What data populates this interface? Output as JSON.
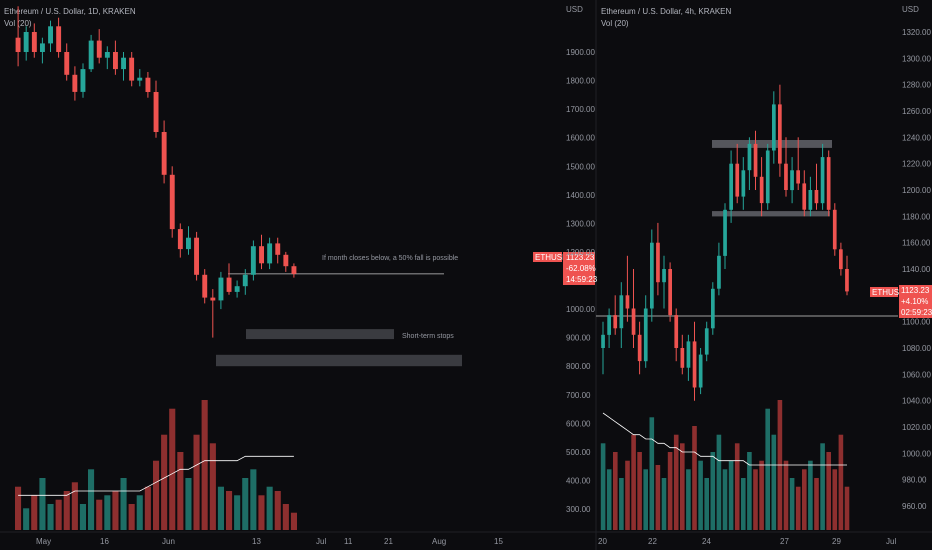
{
  "colors": {
    "up": "#26a69a",
    "down": "#ef5350",
    "up_vol": "#1e6e66",
    "down_vol": "#8e2f2f",
    "ma": "#ffffff",
    "zone": "#3a3b40",
    "tag_bg": "#ef5350"
  },
  "left": {
    "title": "Ethereum / U.S. Dollar, 1D, KRAKEN",
    "vol_label": "Vol (20)",
    "axis_unit": "USD",
    "price_ticks": [
      "1900.00",
      "1800.00",
      "1700.00",
      "1600.00",
      "1500.00",
      "1400.00",
      "1300.00",
      "1200.00",
      "1000.00",
      "900.00",
      "800.00",
      "700.00",
      "600.00",
      "500.00",
      "400.00",
      "300.00"
    ],
    "time_ticks": [
      "May",
      "16",
      "Jun",
      "13",
      "Jul",
      "11",
      "21",
      "Aug",
      "15"
    ],
    "price_tag": {
      "symbol": "ETHUSD",
      "price": "1123.23",
      "change": "-62.08%",
      "countdown": "14:59:23"
    },
    "annotations": {
      "month_close": "If month closes below, a 50% fall is possible",
      "stops": "Short-term stops"
    }
  },
  "right": {
    "title": "Ethereum / U.S. Dollar, 4h, KRAKEN",
    "vol_label": "Vol (20)",
    "axis_unit": "USD",
    "price_ticks": [
      "1320.00",
      "1300.00",
      "1280.00",
      "1260.00",
      "1240.00",
      "1220.00",
      "1200.00",
      "1180.00",
      "1160.00",
      "1140.00",
      "1100.00",
      "1080.00",
      "1060.00",
      "1040.00",
      "1020.00",
      "1000.00",
      "980.00",
      "960.00"
    ],
    "time_ticks": [
      "20",
      "22",
      "24",
      "27",
      "29",
      "Jul"
    ],
    "price_tag": {
      "symbol": "ETHUSD",
      "price": "1123.23",
      "change": "+4.10%",
      "countdown": "02:59:23"
    }
  },
  "chart_data": [
    {
      "type": "candlestick",
      "title": "Ethereum / U.S. Dollar, 1D, KRAKEN",
      "ylim": [
        300,
        2000
      ],
      "candles": [
        [
          1950,
          2060,
          1850,
          1900
        ],
        [
          1900,
          1990,
          1870,
          1970
        ],
        [
          1970,
          2000,
          1880,
          1900
        ],
        [
          1900,
          1950,
          1860,
          1930
        ],
        [
          1930,
          2010,
          1900,
          1990
        ],
        [
          1990,
          2020,
          1880,
          1900
        ],
        [
          1900,
          1930,
          1800,
          1820
        ],
        [
          1820,
          1850,
          1730,
          1760
        ],
        [
          1760,
          1860,
          1740,
          1840
        ],
        [
          1840,
          1960,
          1830,
          1940
        ],
        [
          1940,
          1980,
          1860,
          1880
        ],
        [
          1880,
          1920,
          1840,
          1900
        ],
        [
          1900,
          1940,
          1820,
          1840
        ],
        [
          1840,
          1900,
          1800,
          1880
        ],
        [
          1880,
          1900,
          1780,
          1800
        ],
        [
          1800,
          1840,
          1780,
          1810
        ],
        [
          1810,
          1830,
          1740,
          1760
        ],
        [
          1760,
          1800,
          1600,
          1620
        ],
        [
          1620,
          1660,
          1440,
          1470
        ],
        [
          1470,
          1500,
          1250,
          1280
        ],
        [
          1280,
          1300,
          1180,
          1210
        ],
        [
          1210,
          1290,
          1190,
          1250
        ],
        [
          1250,
          1270,
          1100,
          1120
        ],
        [
          1120,
          1140,
          1020,
          1040
        ],
        [
          1040,
          1070,
          900,
          1030
        ],
        [
          1030,
          1130,
          1000,
          1110
        ],
        [
          1110,
          1160,
          1050,
          1060
        ],
        [
          1060,
          1100,
          1040,
          1080
        ],
        [
          1080,
          1140,
          1050,
          1120
        ],
        [
          1120,
          1240,
          1100,
          1220
        ],
        [
          1220,
          1260,
          1140,
          1160
        ],
        [
          1160,
          1250,
          1140,
          1230
        ],
        [
          1230,
          1250,
          1160,
          1190
        ],
        [
          1190,
          1200,
          1130,
          1150
        ],
        [
          1150,
          1160,
          1110,
          1123
        ]
      ],
      "volumes": [
        10,
        5,
        8,
        12,
        6,
        7,
        9,
        11,
        6,
        14,
        7,
        8,
        9,
        12,
        6,
        8,
        10,
        16,
        22,
        28,
        18,
        12,
        22,
        30,
        20,
        10,
        9,
        8,
        12,
        14,
        8,
        10,
        9,
        6,
        4
      ],
      "volume_ma": [
        8,
        8,
        8,
        8,
        8,
        8,
        8,
        9,
        9,
        9,
        9,
        9,
        9,
        9,
        9,
        9,
        10,
        11,
        12,
        13,
        14,
        14,
        15,
        16,
        16,
        16,
        16,
        16,
        17,
        17,
        17,
        17,
        17,
        17,
        17
      ],
      "levels": {
        "month_close_line": 1123,
        "short_term_stops_zone": [
          895,
          930
        ],
        "deep_support_zone": [
          800,
          840
        ]
      },
      "annotations": [
        "If month closes below, a 50% fall is possible",
        "Short-term stops"
      ],
      "last_price": 1123.23,
      "change_percent": "-62.08%"
    },
    {
      "type": "candlestick",
      "title": "Ethereum / U.S. Dollar, 4h, KRAKEN",
      "ylim": [
        950,
        1330
      ],
      "candles": [
        [
          1080,
          1100,
          1060,
          1090
        ],
        [
          1090,
          1110,
          1080,
          1105
        ],
        [
          1105,
          1120,
          1090,
          1095
        ],
        [
          1095,
          1130,
          1080,
          1120
        ],
        [
          1120,
          1150,
          1100,
          1110
        ],
        [
          1110,
          1140,
          1080,
          1090
        ],
        [
          1090,
          1100,
          1060,
          1070
        ],
        [
          1070,
          1120,
          1065,
          1110
        ],
        [
          1110,
          1170,
          1100,
          1160
        ],
        [
          1160,
          1175,
          1120,
          1130
        ],
        [
          1130,
          1150,
          1110,
          1140
        ],
        [
          1140,
          1145,
          1100,
          1105
        ],
        [
          1105,
          1110,
          1070,
          1080
        ],
        [
          1080,
          1090,
          1060,
          1065
        ],
        [
          1065,
          1090,
          1055,
          1085
        ],
        [
          1085,
          1100,
          1040,
          1050
        ],
        [
          1050,
          1080,
          1045,
          1075
        ],
        [
          1075,
          1100,
          1070,
          1095
        ],
        [
          1095,
          1130,
          1090,
          1125
        ],
        [
          1125,
          1160,
          1120,
          1150
        ],
        [
          1150,
          1190,
          1140,
          1185
        ],
        [
          1185,
          1230,
          1175,
          1220
        ],
        [
          1220,
          1235,
          1190,
          1195
        ],
        [
          1195,
          1225,
          1185,
          1215
        ],
        [
          1215,
          1240,
          1200,
          1235
        ],
        [
          1235,
          1245,
          1200,
          1210
        ],
        [
          1210,
          1225,
          1180,
          1190
        ],
        [
          1190,
          1235,
          1185,
          1230
        ],
        [
          1230,
          1275,
          1220,
          1265
        ],
        [
          1265,
          1280,
          1210,
          1220
        ],
        [
          1220,
          1240,
          1195,
          1200
        ],
        [
          1200,
          1225,
          1190,
          1215
        ],
        [
          1215,
          1240,
          1200,
          1205
        ],
        [
          1205,
          1215,
          1180,
          1185
        ],
        [
          1185,
          1210,
          1180,
          1200
        ],
        [
          1200,
          1220,
          1185,
          1190
        ],
        [
          1190,
          1235,
          1185,
          1225
        ],
        [
          1225,
          1230,
          1180,
          1185
        ],
        [
          1185,
          1190,
          1150,
          1155
        ],
        [
          1155,
          1160,
          1135,
          1140
        ],
        [
          1140,
          1150,
          1120,
          1123
        ]
      ],
      "volumes": [
        20,
        14,
        18,
        12,
        16,
        22,
        18,
        14,
        26,
        15,
        12,
        18,
        22,
        20,
        14,
        24,
        16,
        12,
        18,
        22,
        14,
        16,
        20,
        12,
        18,
        14,
        16,
        28,
        22,
        30,
        16,
        12,
        10,
        14,
        16,
        12,
        20,
        18,
        14,
        22,
        10
      ],
      "volume_ma": [
        27,
        26,
        25,
        24,
        23,
        22,
        22,
        21,
        21,
        20,
        20,
        19,
        19,
        18,
        18,
        18,
        17,
        17,
        17,
        16,
        16,
        16,
        16,
        16,
        15,
        15,
        15,
        15,
        15,
        15,
        15,
        15,
        15,
        15,
        15,
        15,
        15,
        15,
        15,
        15,
        15
      ],
      "levels": {
        "resistance_zone": [
          1232,
          1238
        ],
        "support_zone": [
          1180,
          1184
        ],
        "horizontal_line": 1108
      },
      "last_price": 1123.23,
      "change_percent": "+4.10%"
    }
  ]
}
